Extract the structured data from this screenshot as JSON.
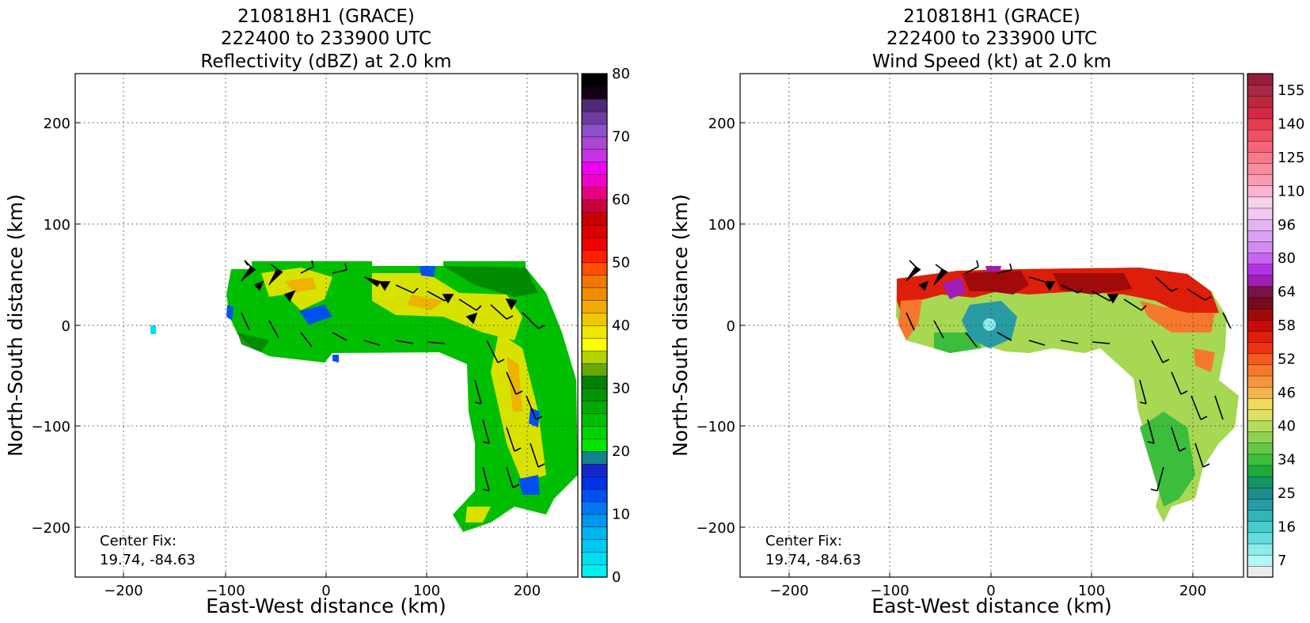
{
  "chart_data": [
    {
      "type": "heatmap",
      "panel": "left",
      "title_lines": [
        "210818H1 (GRACE)",
        "222400 to 233900 UTC",
        "Reflectivity (dBZ) at 2.0 km"
      ],
      "xlabel": "East-West distance (km)",
      "ylabel": "North-South distance (km)",
      "xlim": [
        -250,
        250
      ],
      "ylim": [
        -250,
        250
      ],
      "xticks": [
        -200,
        -100,
        0,
        100,
        200
      ],
      "yticks": [
        -200,
        -100,
        0,
        100,
        200
      ],
      "grid": true,
      "annotation": [
        "Center Fix:",
        "19.74, -84.63"
      ],
      "colorbar": {
        "min": 0,
        "max": 80,
        "tick_values": [
          0,
          10,
          20,
          30,
          40,
          50,
          60,
          70,
          80
        ],
        "colors": [
          "#00f0f0",
          "#00dcf0",
          "#00c8f0",
          "#00b4f0",
          "#0096f0",
          "#0078f0",
          "#0050f0",
          "#0032e6",
          "#1428c8",
          "#14828c",
          "#00e600",
          "#00d200",
          "#00be00",
          "#00aa00",
          "#009600",
          "#008200",
          "#64aa00",
          "#b4d200",
          "#ffff00",
          "#f0e600",
          "#f0c800",
          "#f0aa00",
          "#f08c00",
          "#f07800",
          "#ff5000",
          "#ff1e00",
          "#f00000",
          "#dc0000",
          "#c80000",
          "#c8003c",
          "#e6007d",
          "#f000c8",
          "#f000f0",
          "#c832e6",
          "#aa46d2",
          "#8c50c8",
          "#6e3ca0",
          "#502878",
          "#140014",
          "#000000"
        ]
      },
      "overlay": "wind barbs"
    },
    {
      "type": "heatmap",
      "panel": "right",
      "title_lines": [
        "210818H1 (GRACE)",
        "222400 to 233900 UTC",
        "Wind Speed (kt) at 2.0 km"
      ],
      "xlabel": "East-West distance (km)",
      "ylabel": "North-South distance (km)",
      "xlim": [
        -250,
        250
      ],
      "ylim": [
        -250,
        250
      ],
      "xticks": [
        -200,
        -100,
        0,
        100,
        200
      ],
      "yticks": [
        -200,
        -100,
        0,
        100,
        200
      ],
      "grid": true,
      "annotation": [
        "Center Fix:",
        "19.74, -84.63"
      ],
      "colorbar": {
        "tick_labels": [
          "7",
          "16",
          "25",
          "34",
          "40",
          "46",
          "52",
          "58",
          "64",
          "80",
          "96",
          "110",
          "125",
          "140",
          "155"
        ],
        "colors": [
          "#ebebeb",
          "#b4f5f5",
          "#8cebeb",
          "#64dcdc",
          "#46cdcd",
          "#32b4b9",
          "#289ba5",
          "#1e8c8c",
          "#149664",
          "#1eaa3c",
          "#3cbe3c",
          "#64c846",
          "#8cd250",
          "#b4dc5a",
          "#dce164",
          "#f0dc5a",
          "#f5b44b",
          "#f5963c",
          "#f5782d",
          "#f55a1e",
          "#f03214",
          "#dc1e0a",
          "#c80a0a",
          "#a00a0a",
          "#780a1e",
          "#781446",
          "#a01eb4",
          "#b432e6",
          "#c864f0",
          "#d28cf0",
          "#dca0f0",
          "#e6b4f0",
          "#f0c8f0",
          "#f5d2e6",
          "#fab4d2",
          "#fa9bb4",
          "#fa8ca0",
          "#fa788c",
          "#f56478",
          "#f05064",
          "#e63c50",
          "#d22846",
          "#be283c",
          "#a82846",
          "#961e3c"
        ]
      },
      "overlay": "wind barbs"
    }
  ]
}
